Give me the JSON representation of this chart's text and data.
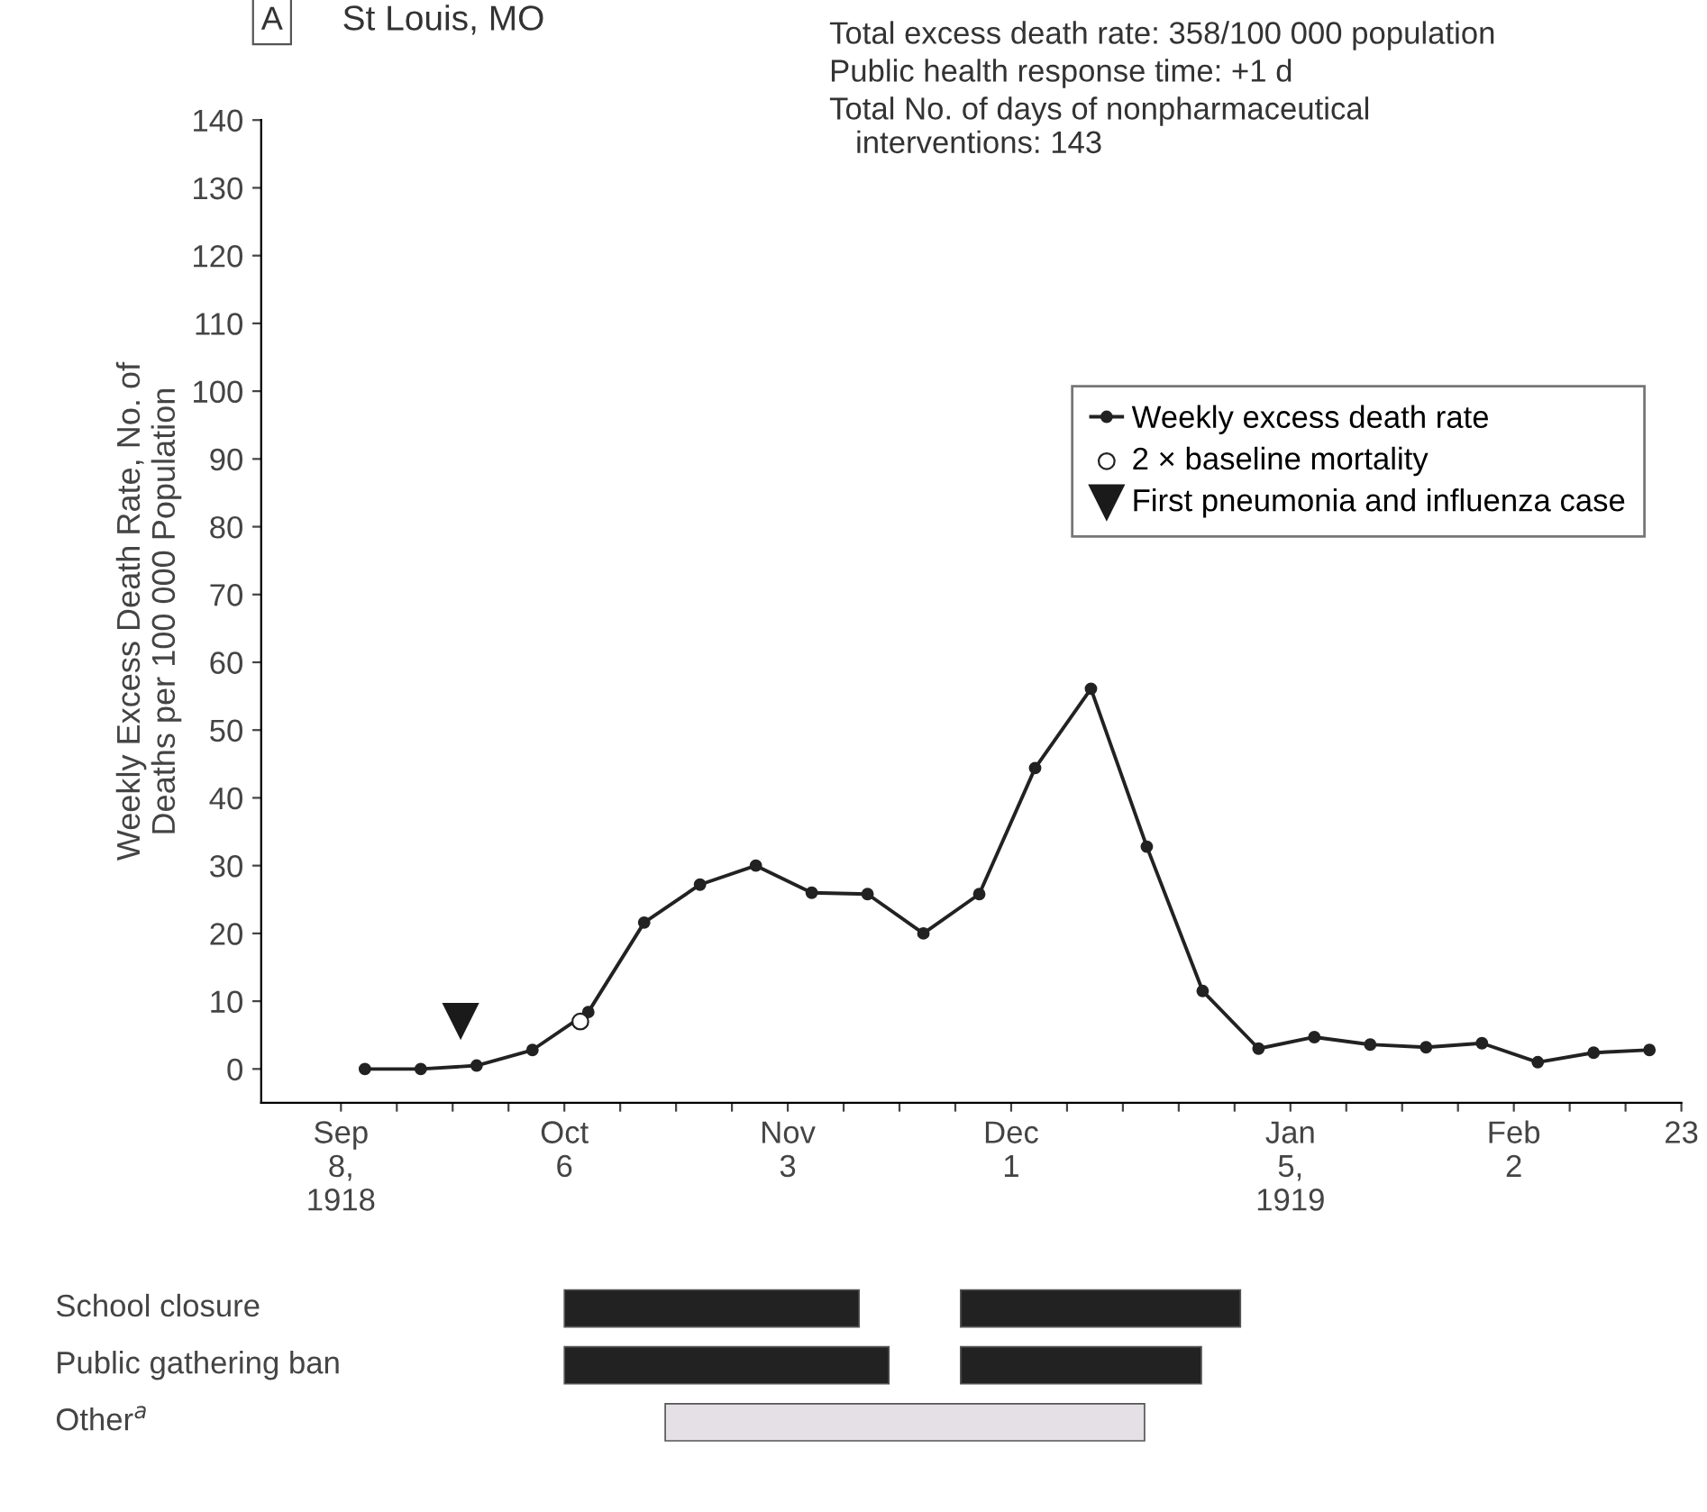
{
  "chart_data": [
    {
      "type": "line",
      "title": "St Louis, MO",
      "ylabel": "Weekly Excess Death Rate, No. of\nDeaths per 100 000 Population",
      "annotations": [
        "A",
        "Total excess death rate: 358/100 000 population",
        "Public health response time: +1 d",
        "Total No. of days of nonpharmaceutical\n   interventions: 143"
      ],
      "series": [
        {
          "name": "Weekly excess death rate",
          "type": "line",
          "color": "#222222",
          "marker": "circle",
          "x": [
            "1918-09-11",
            "1918-09-18",
            "1918-09-25",
            "1918-10-02",
            "1918-10-09",
            "1918-10-16",
            "1918-10-23",
            "1918-10-30",
            "1918-11-06",
            "1918-11-13",
            "1918-11-20",
            "1918-11-27",
            "1918-12-04",
            "1918-12-11",
            "1918-12-18",
            "1918-12-25",
            "1919-01-01",
            "1919-01-08",
            "1919-01-15",
            "1919-01-22",
            "1919-01-29",
            "1919-02-05",
            "1919-02-12",
            "1919-02-19"
          ],
          "values": [
            0,
            0,
            0.5,
            2.8,
            8.4,
            21.6,
            27.2,
            30,
            26,
            25.8,
            20,
            25.8,
            44.4,
            56.1,
            32.8,
            11.5,
            3,
            4.7,
            3.6,
            3.2,
            3.8,
            1,
            2.4,
            2.8
          ]
        },
        {
          "name": "2 × baseline mortality",
          "type": "scatter",
          "color": "#ffffff",
          "marker": "circle",
          "x": [
            "1918-10-08"
          ],
          "values": [
            7
          ]
        },
        {
          "name": "First pneumonia and influenza case",
          "type": "scatter",
          "color": "#1a1a1a",
          "marker": "triangle",
          "x": [
            "1918-09-23"
          ],
          "values": [
            7
          ]
        }
      ],
      "xlim": [
        "1918-08-29",
        "1919-02-23"
      ],
      "xticks": [
        {
          "value": "1918-09-08",
          "label": "Sep\n8,\n1918"
        },
        {
          "value": "1918-09-15",
          "label": null
        },
        {
          "value": "1918-09-22",
          "label": null
        },
        {
          "value": "1918-09-29",
          "label": null
        },
        {
          "value": "1918-10-06",
          "label": "Oct\n6"
        },
        {
          "value": "1918-10-13",
          "label": null
        },
        {
          "value": "1918-10-20",
          "label": null
        },
        {
          "value": "1918-10-27",
          "label": null
        },
        {
          "value": "1918-11-03",
          "label": "Nov\n3"
        },
        {
          "value": "1918-11-10",
          "label": null
        },
        {
          "value": "1918-11-17",
          "label": null
        },
        {
          "value": "1918-11-24",
          "label": null
        },
        {
          "value": "1918-12-01",
          "label": "Dec\n1"
        },
        {
          "value": "1918-12-08",
          "label": null
        },
        {
          "value": "1918-12-15",
          "label": null
        },
        {
          "value": "1918-12-22",
          "label": null
        },
        {
          "value": "1918-12-29",
          "label": null
        },
        {
          "value": "1919-01-05",
          "label": "Jan\n5,\n1919"
        },
        {
          "value": "1919-01-12",
          "label": null
        },
        {
          "value": "1919-01-19",
          "label": null
        },
        {
          "value": "1919-01-26",
          "label": null
        },
        {
          "value": "1919-02-02",
          "label": "Feb\n2"
        },
        {
          "value": "1919-02-09",
          "label": null
        },
        {
          "value": "1919-02-16",
          "label": null
        },
        {
          "value": "1919-02-23",
          "label": "23"
        }
      ],
      "ylim": [
        -5,
        140
      ],
      "yticks": [
        0,
        10,
        20,
        30,
        40,
        50,
        60,
        70,
        80,
        90,
        100,
        110,
        120,
        130,
        140
      ],
      "grid": false,
      "legend": "top right"
    },
    {
      "type": "other",
      "annotations": [
        "School closure",
        "Public gathering ban",
        "Other$^{a}$"
      ]
    }
  ]
}
